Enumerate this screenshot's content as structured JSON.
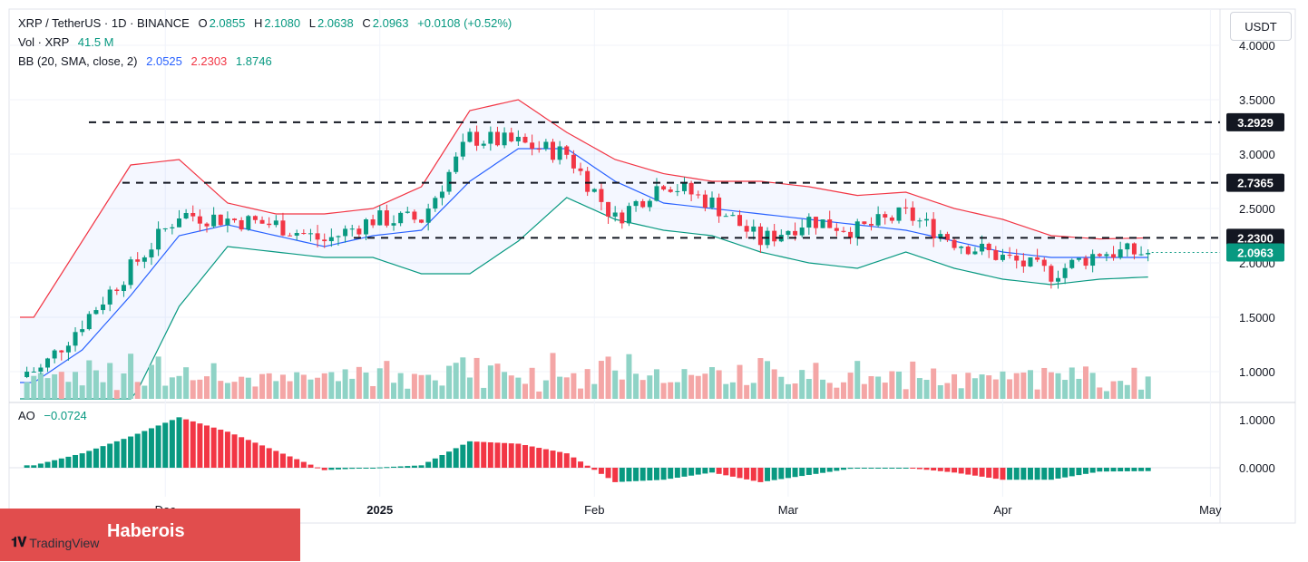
{
  "header": {
    "symbol": "XRP / TetherUS · 1D · BINANCE",
    "open_label": "O",
    "open": "2.0855",
    "high_label": "H",
    "high": "2.1080",
    "low_label": "L",
    "low": "2.0638",
    "close_label": "C",
    "close": "2.0963",
    "change": "+0.0108 (+0.52%)"
  },
  "vol_legend": {
    "label": "Vol · XRP",
    "value": "41.5 M"
  },
  "bb_legend": {
    "label": "BB (20, SMA, close, 2)",
    "basis": "2.0525",
    "upper": "2.2303",
    "lower": "1.8746"
  },
  "ao_legend": {
    "label": "AO",
    "value": "−0.0724"
  },
  "unit_button": "USDT",
  "price_ticks": [
    "4.0000",
    "3.5000",
    "3.0000",
    "2.5000",
    "2.0000",
    "1.5000",
    "1.0000"
  ],
  "ao_ticks": [
    "1.0000",
    "0.0000"
  ],
  "x_ticks": [
    "Dec",
    "2025",
    "Feb",
    "Mar",
    "Apr",
    "May"
  ],
  "levels": [
    {
      "label": "3.2929",
      "color": "#131722"
    },
    {
      "label": "2.7365",
      "color": "#131722"
    },
    {
      "label": "2.2300",
      "color": "#131722"
    },
    {
      "label": "2.0963",
      "color": "#089981"
    }
  ],
  "colors": {
    "up": "#089981",
    "down": "#f23645",
    "bb_upper": "#f23645",
    "bb_basis": "#2962ff",
    "bb_lower": "#089981",
    "vol_up": "#8fd3c6",
    "vol_down": "#f4a6a6"
  },
  "watermark": "Haberois",
  "logo_text": "TradingView",
  "chart_data": {
    "type": "candlestick",
    "x": [
      "2024-11-12",
      "2024-11-19",
      "2024-11-26",
      "2024-12-03",
      "2024-12-10",
      "2024-12-17",
      "2024-12-24",
      "2024-12-31",
      "2025-01-07",
      "2025-01-14",
      "2025-01-21",
      "2025-01-28",
      "2025-02-04",
      "2025-02-11",
      "2025-02-18",
      "2025-02-25",
      "2025-03-04",
      "2025-03-11",
      "2025-03-18",
      "2025-03-25",
      "2025-04-01",
      "2025-04-08",
      "2025-04-15",
      "2025-04-22"
    ],
    "close": [
      0.95,
      1.45,
      1.95,
      2.45,
      2.4,
      2.35,
      2.2,
      2.4,
      2.4,
      3.15,
      3.1,
      3.0,
      2.4,
      2.75,
      2.55,
      2.2,
      2.4,
      2.3,
      2.45,
      2.2,
      2.05,
      1.9,
      2.1,
      2.09
    ],
    "x_ticks": [
      "Dec",
      "2025",
      "Feb",
      "Mar",
      "Apr",
      "May"
    ],
    "bb_upper": [
      1.5,
      2.2,
      2.9,
      2.95,
      2.55,
      2.45,
      2.45,
      2.5,
      2.7,
      3.4,
      3.5,
      3.2,
      2.95,
      2.82,
      2.75,
      2.75,
      2.7,
      2.62,
      2.65,
      2.5,
      2.4,
      2.25,
      2.22,
      2.23
    ],
    "bb_basis": [
      0.9,
      1.2,
      1.7,
      2.25,
      2.35,
      2.25,
      2.15,
      2.25,
      2.3,
      2.75,
      3.05,
      3.05,
      2.75,
      2.55,
      2.5,
      2.45,
      2.4,
      2.35,
      2.3,
      2.2,
      2.1,
      2.05,
      2.05,
      2.05
    ],
    "bb_lower": [
      0.6,
      0.6,
      0.7,
      1.6,
      2.15,
      2.1,
      2.05,
      2.05,
      1.9,
      1.9,
      2.2,
      2.6,
      2.4,
      2.3,
      2.25,
      2.1,
      2.0,
      1.95,
      2.1,
      1.95,
      1.85,
      1.8,
      1.85,
      1.87
    ],
    "ao": [
      0.05,
      0.3,
      0.65,
      1.05,
      0.75,
      0.35,
      -0.05,
      0.0,
      0.05,
      0.55,
      0.5,
      0.3,
      -0.3,
      -0.25,
      -0.1,
      -0.3,
      -0.15,
      0.0,
      0.0,
      -0.1,
      -0.25,
      -0.25,
      -0.08,
      -0.07
    ],
    "reference_levels": [
      3.2929,
      2.7365,
      2.23
    ],
    "last_price": 2.0963,
    "ylim": [
      0.95,
      4.0
    ],
    "ao_ylim": [
      -0.45,
      1.25
    ],
    "grid": true,
    "legend": "top-left"
  }
}
